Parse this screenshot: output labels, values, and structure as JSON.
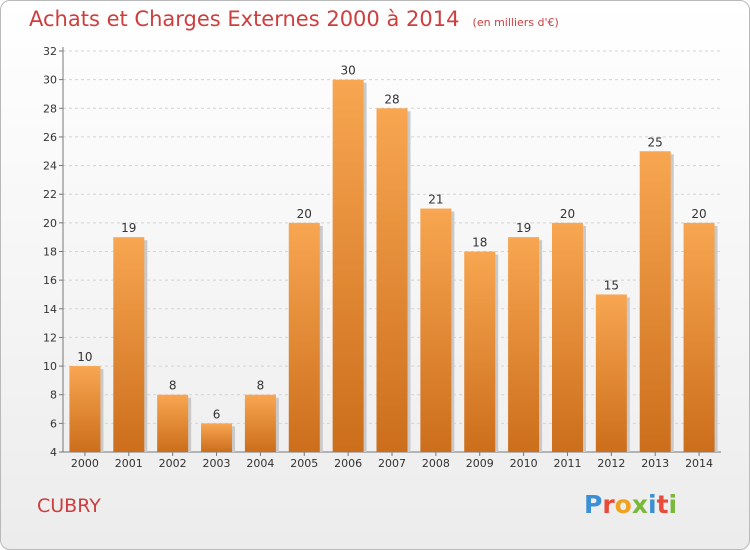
{
  "header": {
    "title": "Achats et Charges Externes 2000 à 2014",
    "subtitle": "(en milliers d'€)"
  },
  "footer": {
    "commune": "CUBRY",
    "logo": {
      "text": "Proxiti",
      "letter_colors": [
        "#3a8fd6",
        "#e84b3a",
        "#f0a21f",
        "#7ab83a",
        "#3a8fd6",
        "#e84b3a",
        "#7ab83a"
      ]
    }
  },
  "chart_data": {
    "type": "bar",
    "categories": [
      "2000",
      "2001",
      "2002",
      "2003",
      "2004",
      "2005",
      "2006",
      "2007",
      "2008",
      "2009",
      "2010",
      "2011",
      "2012",
      "2013",
      "2014"
    ],
    "values": [
      10,
      19,
      8,
      6,
      8,
      20,
      30,
      28,
      21,
      18,
      19,
      20,
      15,
      25,
      20
    ],
    "ylim": [
      4,
      32
    ],
    "yticks": [
      4,
      6,
      8,
      10,
      12,
      14,
      16,
      18,
      20,
      22,
      24,
      26,
      28,
      30,
      32
    ],
    "grid": true,
    "bar_color_top": "#f8a651",
    "bar_color_bottom": "#cc6e1c"
  }
}
